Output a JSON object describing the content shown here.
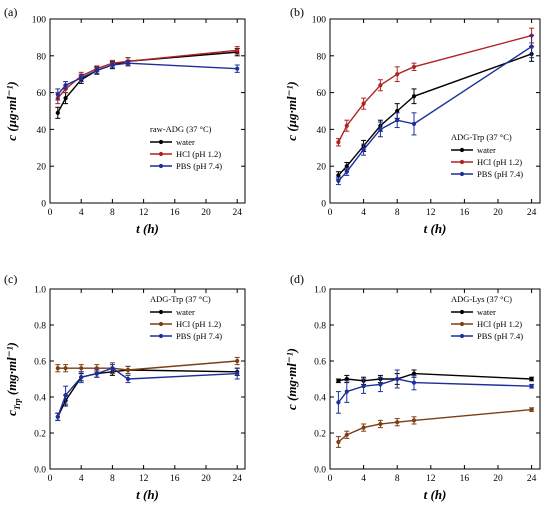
{
  "chart_data": [
    {
      "type": "line",
      "panel_label": "(a)",
      "xlabel": "t (h)",
      "ylabel": "c (µg·ml⁻¹)",
      "xlim": [
        0,
        25
      ],
      "ylim": [
        0,
        100
      ],
      "xticks": [
        "0",
        "4",
        "8",
        "12",
        "16",
        "20",
        "24"
      ],
      "yticks": [
        "0",
        "20",
        "40",
        "60",
        "80",
        "100"
      ],
      "legend_title": "raw-ADG (37 °C)",
      "legend_position": "center-right",
      "x": [
        1,
        2,
        4,
        6,
        8,
        10,
        24
      ],
      "series": [
        {
          "name": "water",
          "color": "#000000",
          "values": [
            49,
            57,
            67,
            72,
            75,
            77,
            82
          ],
          "errors": [
            3,
            3,
            2,
            2,
            2,
            2,
            2
          ]
        },
        {
          "name": "HCl (pH 1.2)",
          "color": "#b22222",
          "values": [
            57,
            62,
            69,
            73,
            76,
            77,
            83
          ],
          "errors": [
            3,
            2,
            2,
            1.5,
            1.5,
            2,
            2
          ]
        },
        {
          "name": "PBS (pH 7.4)",
          "color": "#1c2f9c",
          "values": [
            59,
            64,
            68,
            72,
            75,
            76,
            73
          ],
          "errors": [
            3,
            2,
            2,
            1.5,
            1.5,
            1.5,
            2
          ]
        }
      ]
    },
    {
      "type": "line",
      "panel_label": "(b)",
      "xlabel": "t (h)",
      "ylabel": "c (µg·ml⁻¹)",
      "xlim": [
        0,
        25
      ],
      "ylim": [
        0,
        100
      ],
      "xticks": [
        "0",
        "4",
        "8",
        "12",
        "16",
        "20",
        "24"
      ],
      "yticks": [
        "0",
        "20",
        "40",
        "60",
        "80",
        "100"
      ],
      "legend_title": "ADG-Trp (37 °C)",
      "legend_position": "center-right",
      "x": [
        1,
        2,
        4,
        6,
        8,
        10,
        24
      ],
      "series": [
        {
          "name": "water",
          "color": "#000000",
          "values": [
            15,
            20,
            31,
            42,
            50,
            58,
            81
          ],
          "errors": [
            2,
            2,
            3,
            3,
            4,
            4,
            4
          ]
        },
        {
          "name": "HCl (pH 1.2)",
          "color": "#b22222",
          "values": [
            33,
            42,
            54,
            64,
            70,
            74,
            91
          ],
          "errors": [
            2,
            3,
            3,
            3,
            4,
            2,
            4
          ]
        },
        {
          "name": "PBS (pH 7.4)",
          "color": "#1c2f9c",
          "values": [
            12,
            17,
            29,
            40,
            45,
            43,
            85
          ],
          "errors": [
            2,
            2,
            3,
            4,
            4,
            6,
            6
          ]
        }
      ]
    },
    {
      "type": "line",
      "panel_label": "(c)",
      "xlabel": "t (h)",
      "ylabel": "c_Trp (mg·ml⁻¹)",
      "ylabel_main": "c",
      "ylabel_sub": "Trp",
      "ylabel_unit": "(mg·ml⁻¹)",
      "xlim": [
        0,
        25
      ],
      "ylim": [
        0,
        1.0
      ],
      "xticks": [
        "0",
        "4",
        "8",
        "12",
        "16",
        "20",
        "24"
      ],
      "yticks": [
        "0.0",
        "0.2",
        "0.4",
        "0.6",
        "0.8",
        "1.0"
      ],
      "legend_title": "ADG-Trp (37 °C)",
      "legend_position": "top-right",
      "x": [
        1,
        2,
        4,
        6,
        8,
        10,
        24
      ],
      "series": [
        {
          "name": "water",
          "color": "#000000",
          "values": [
            0.29,
            0.38,
            0.51,
            0.53,
            0.54,
            0.55,
            0.54
          ],
          "errors": [
            0.02,
            0.03,
            0.02,
            0.02,
            0.02,
            0.02,
            0.02
          ]
        },
        {
          "name": "HCl (pH 1.2)",
          "color": "#7b3f14",
          "values": [
            0.56,
            0.56,
            0.56,
            0.56,
            0.56,
            0.55,
            0.6
          ],
          "errors": [
            0.02,
            0.02,
            0.02,
            0.02,
            0.03,
            0.02,
            0.02
          ]
        },
        {
          "name": "PBS (pH 7.4)",
          "color": "#1c2f9c",
          "values": [
            0.29,
            0.41,
            0.51,
            0.53,
            0.56,
            0.5,
            0.53
          ],
          "errors": [
            0.02,
            0.05,
            0.03,
            0.02,
            0.02,
            0.02,
            0.03
          ]
        }
      ]
    },
    {
      "type": "line",
      "panel_label": "(d)",
      "xlabel": "t (h)",
      "ylabel": "c (mg·ml⁻¹)",
      "xlim": [
        0,
        25
      ],
      "ylim": [
        0,
        1.0
      ],
      "xticks": [
        "0",
        "4",
        "8",
        "12",
        "16",
        "20",
        "24"
      ],
      "yticks": [
        "0.0",
        "0.2",
        "0.4",
        "0.6",
        "0.8",
        "1.0"
      ],
      "legend_title": "ADG-Lys (37 °C)",
      "legend_position": "top-right",
      "x": [
        1,
        2,
        4,
        6,
        8,
        10,
        24
      ],
      "series": [
        {
          "name": "water",
          "color": "#000000",
          "values": [
            0.49,
            0.5,
            0.49,
            0.5,
            0.5,
            0.53,
            0.5
          ],
          "errors": [
            0.01,
            0.02,
            0.02,
            0.02,
            0.03,
            0.02,
            0.01
          ]
        },
        {
          "name": "HCl (pH 1.2)",
          "color": "#7b3f14",
          "values": [
            0.15,
            0.19,
            0.23,
            0.25,
            0.26,
            0.27,
            0.33
          ],
          "errors": [
            0.03,
            0.02,
            0.02,
            0.02,
            0.02,
            0.02,
            0.01
          ]
        },
        {
          "name": "PBS (pH 7.4)",
          "color": "#1c2f9c",
          "values": [
            0.37,
            0.43,
            0.46,
            0.47,
            0.5,
            0.48,
            0.46
          ],
          "errors": [
            0.06,
            0.06,
            0.04,
            0.04,
            0.05,
            0.04,
            0.01
          ]
        }
      ]
    }
  ]
}
